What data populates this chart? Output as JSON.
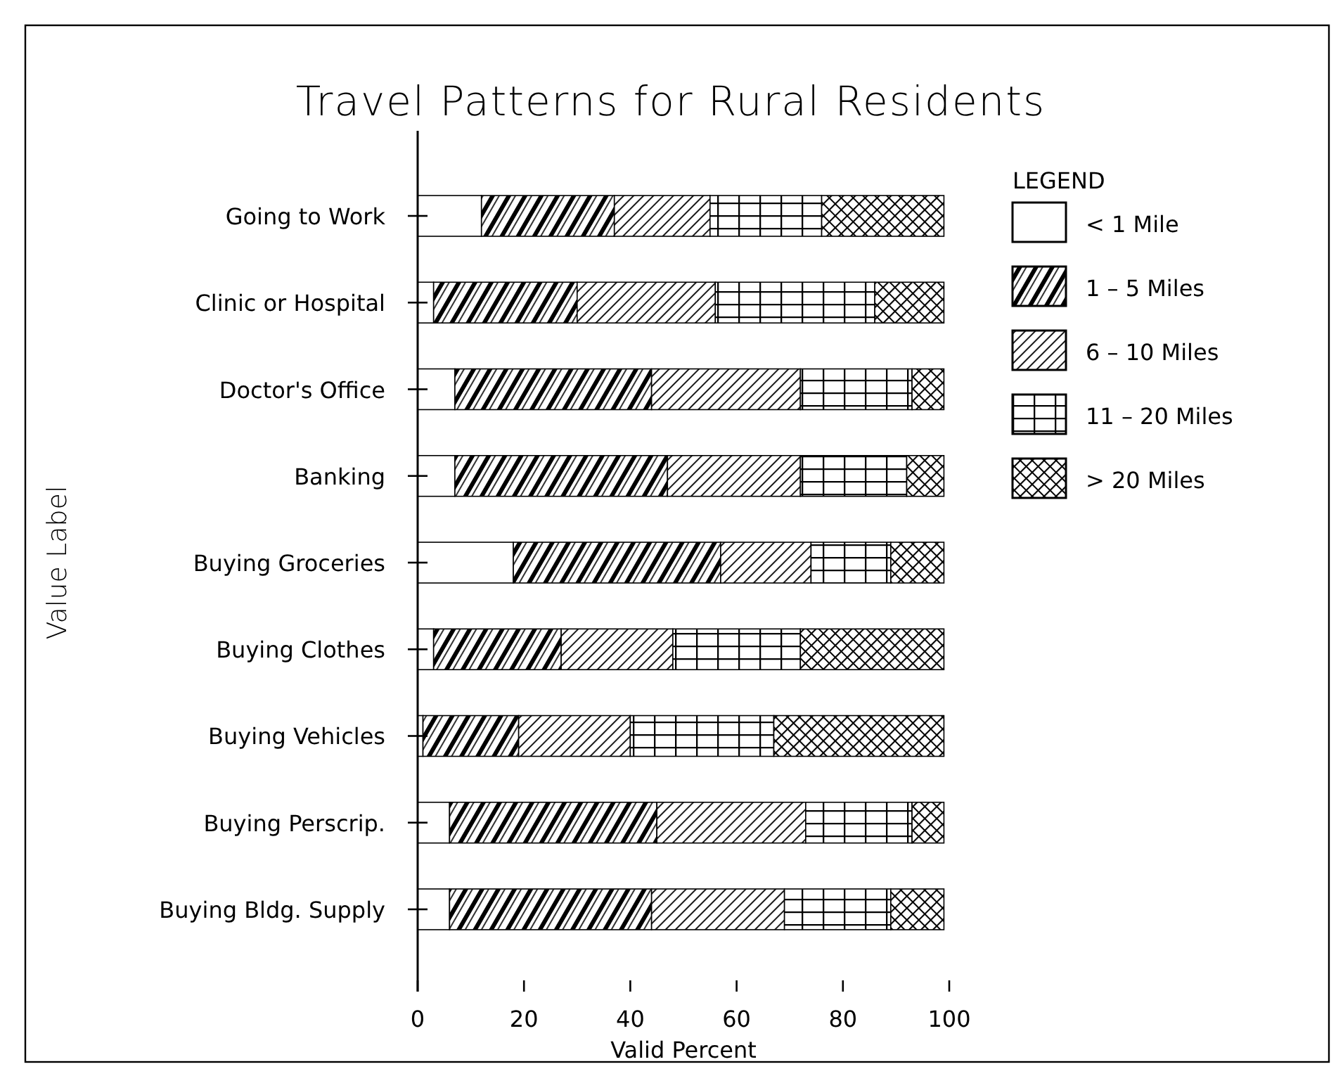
{
  "chart_data": {
    "type": "bar",
    "orientation": "horizontal",
    "stacked": true,
    "title": "Travel Patterns for Rural Residents",
    "xlabel": "Valid Percent",
    "ylabel": "Value Label",
    "legend_title": "LEGEND",
    "legend": "top right",
    "grid": false,
    "categories": [
      "Going to Work",
      "Clinic or Hospital",
      "Doctor's Office",
      "Banking",
      "Buying Groceries",
      "Buying Clothes",
      "Buying Vehicles",
      "Buying Perscrip.",
      "Buying Bldg. Supply"
    ],
    "xlim": [
      0,
      100
    ],
    "xticks": [
      0,
      20,
      40,
      60,
      80,
      100
    ],
    "series": [
      {
        "name": "< 1 Mile",
        "color": "#ffffff",
        "values": [
          12,
          3,
          7,
          7,
          18,
          3,
          1,
          6,
          6
        ]
      },
      {
        "name": "1 – 5 Miles",
        "color": "#000000",
        "values": [
          25,
          27,
          37,
          40,
          39,
          24,
          18,
          39,
          38
        ]
      },
      {
        "name": "6 – 10 Miles",
        "color": "#000000",
        "values": [
          18,
          26,
          28,
          25,
          17,
          21,
          21,
          28,
          25
        ]
      },
      {
        "name": "11 – 20 Miles",
        "color": "#000000",
        "values": [
          21,
          30,
          21,
          20,
          15,
          24,
          27,
          20,
          20
        ]
      },
      {
        "name": "> 20 Miles",
        "color": "#000000",
        "values": [
          23,
          13,
          6,
          7,
          10,
          27,
          32,
          6,
          10
        ]
      }
    ]
  }
}
